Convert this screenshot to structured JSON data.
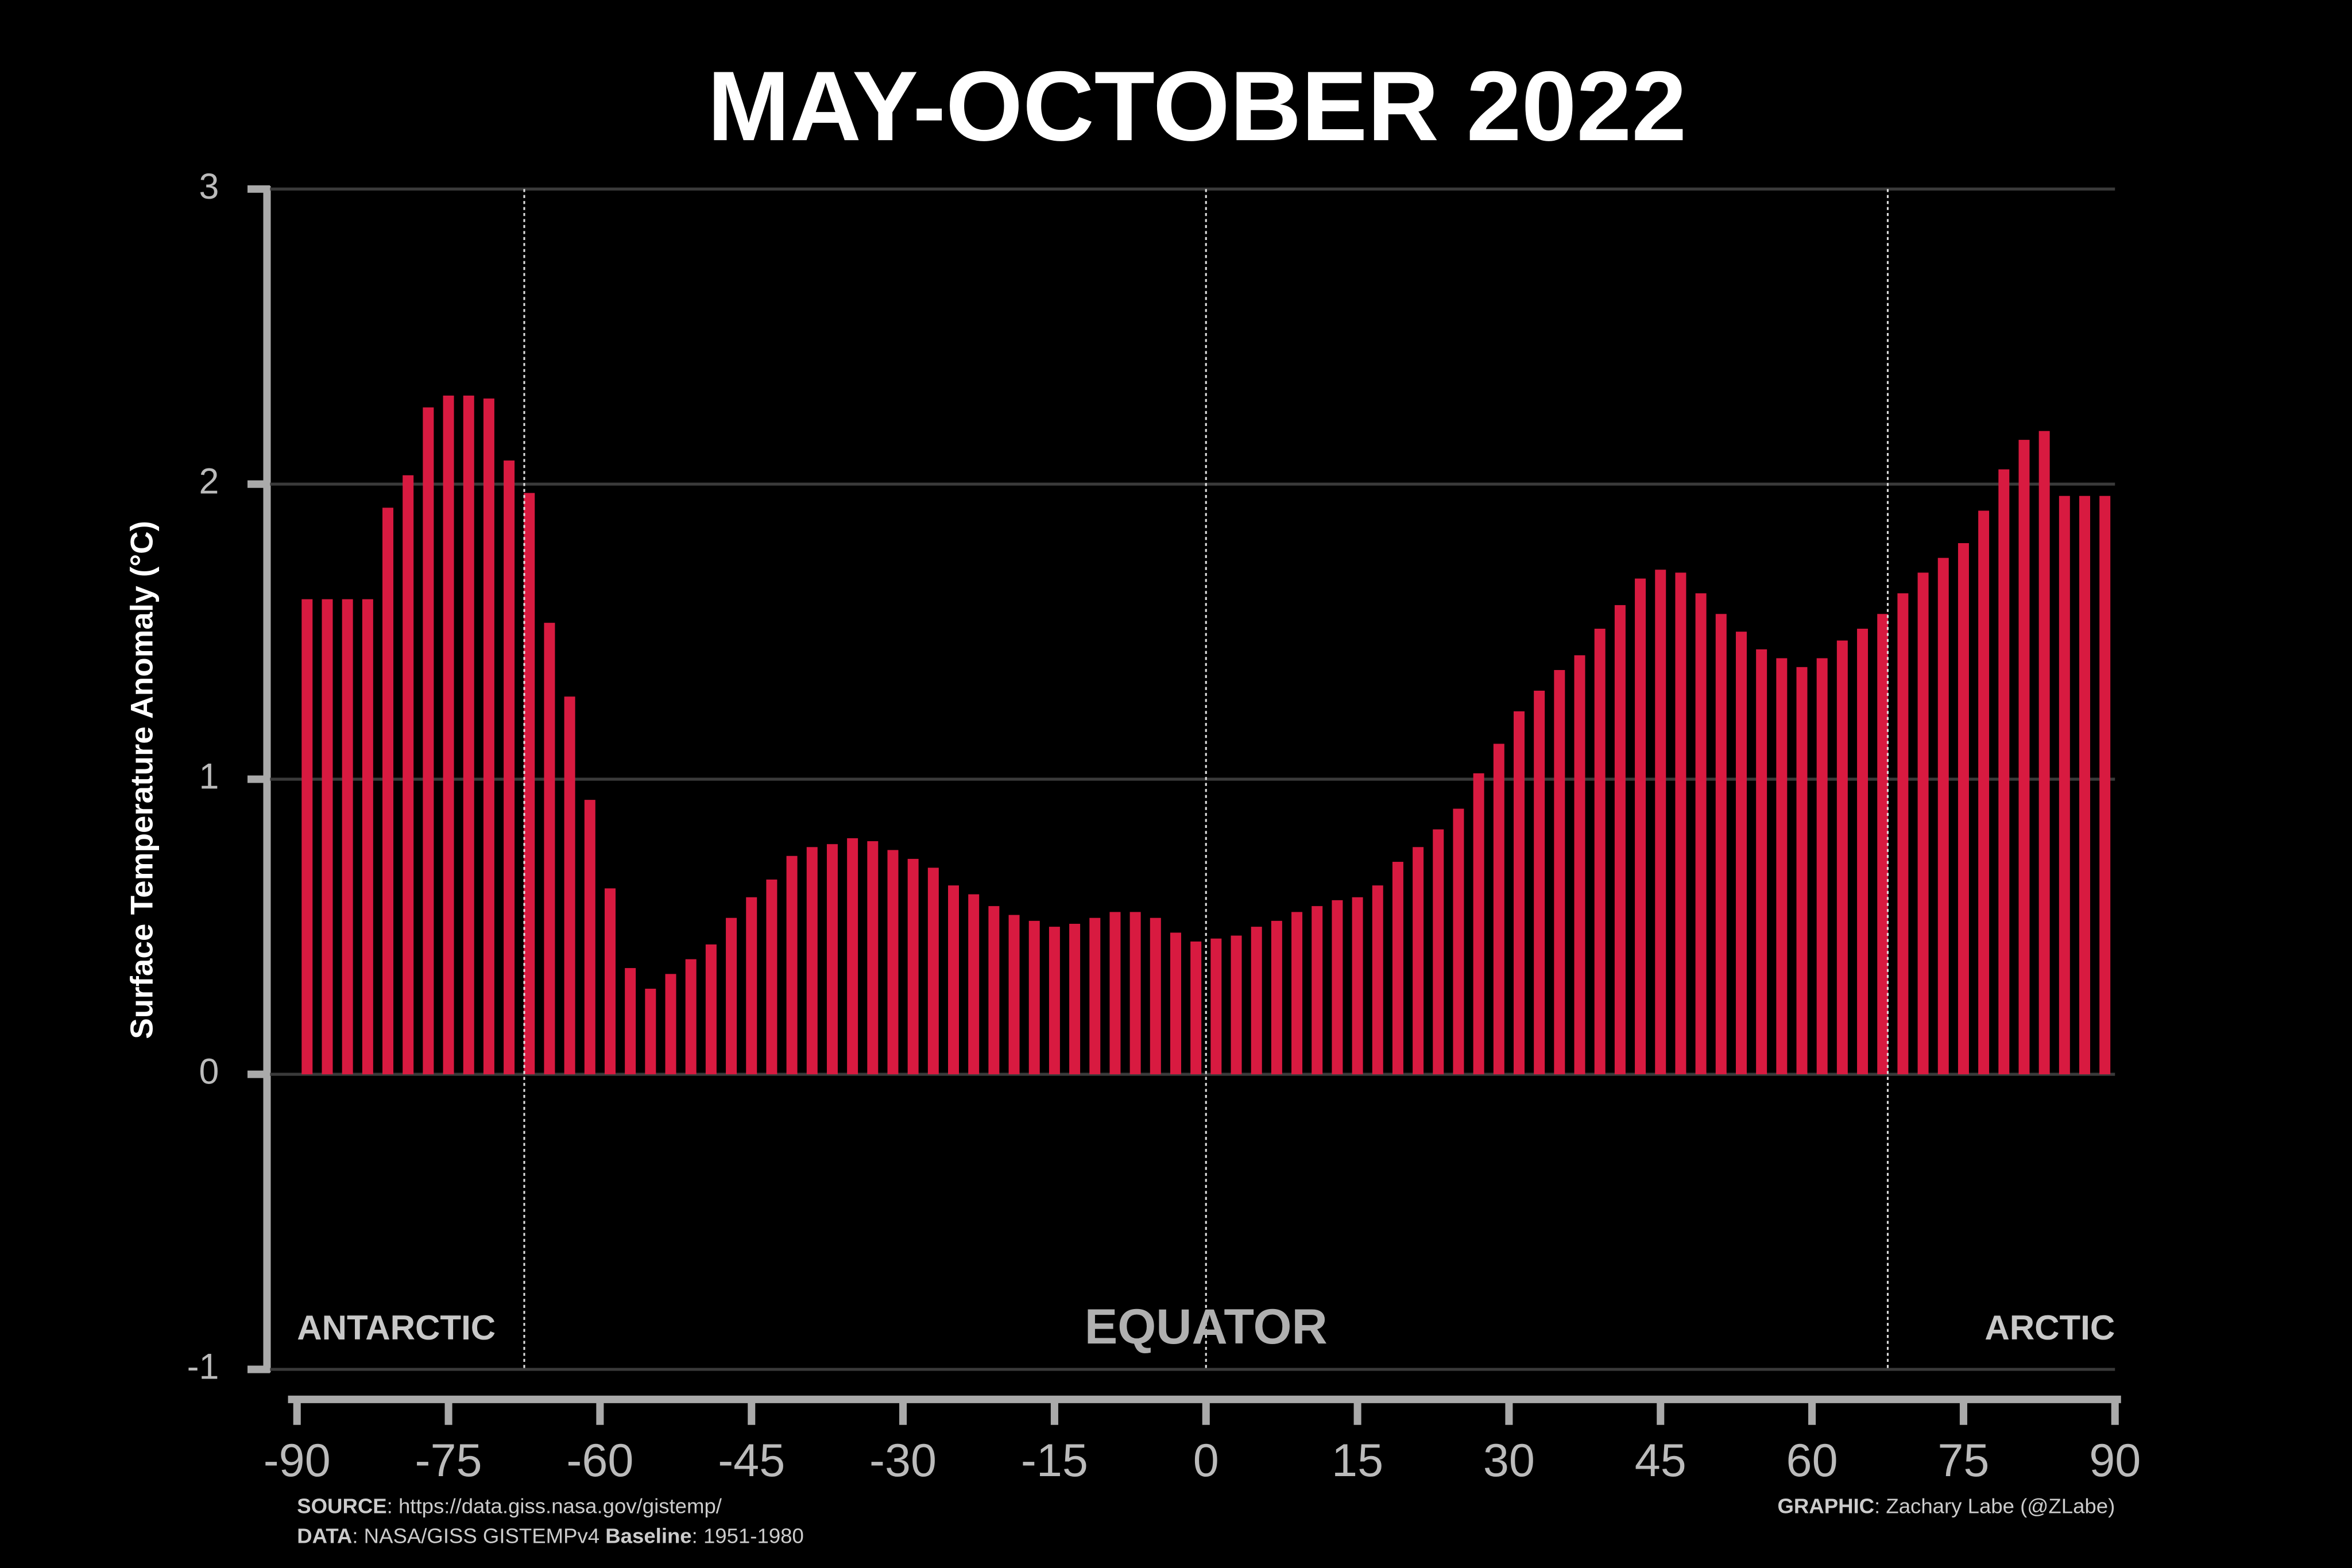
{
  "chart_data": {
    "type": "bar",
    "title": "MAY-OCTOBER 2022",
    "y_label": "Surface Temperature Anomaly (°C)",
    "x": [
      -89,
      -87,
      -85,
      -83,
      -81,
      -79,
      -77,
      -75,
      -73,
      -71,
      -69,
      -67,
      -65,
      -63,
      -61,
      -59,
      -57,
      -55,
      -53,
      -51,
      -49,
      -47,
      -45,
      -43,
      -41,
      -39,
      -37,
      -35,
      -33,
      -31,
      -29,
      -27,
      -25,
      -23,
      -21,
      -19,
      -17,
      -15,
      -13,
      -11,
      -9,
      -7,
      -5,
      -3,
      -1,
      1,
      3,
      5,
      7,
      9,
      11,
      13,
      15,
      17,
      19,
      21,
      23,
      25,
      27,
      29,
      31,
      33,
      35,
      37,
      39,
      41,
      43,
      45,
      47,
      49,
      51,
      53,
      55,
      57,
      59,
      61,
      63,
      65,
      67,
      69,
      71,
      73,
      75,
      77,
      79,
      81,
      83,
      85,
      87,
      89
    ],
    "values": [
      1.61,
      1.61,
      1.61,
      1.61,
      1.92,
      2.03,
      2.26,
      2.3,
      2.3,
      2.29,
      2.08,
      1.97,
      1.53,
      1.28,
      0.93,
      0.63,
      0.36,
      0.29,
      0.34,
      0.39,
      0.44,
      0.53,
      0.6,
      0.66,
      0.74,
      0.77,
      0.78,
      0.8,
      0.79,
      0.76,
      0.73,
      0.7,
      0.64,
      0.61,
      0.57,
      0.54,
      0.52,
      0.5,
      0.51,
      0.53,
      0.55,
      0.55,
      0.53,
      0.48,
      0.45,
      0.46,
      0.47,
      0.5,
      0.52,
      0.55,
      0.57,
      0.59,
      0.6,
      0.64,
      0.72,
      0.77,
      0.83,
      0.9,
      1.02,
      1.12,
      1.23,
      1.3,
      1.37,
      1.42,
      1.51,
      1.59,
      1.68,
      1.71,
      1.7,
      1.63,
      1.56,
      1.5,
      1.44,
      1.41,
      1.38,
      1.41,
      1.47,
      1.51,
      1.56,
      1.63,
      1.7,
      1.75,
      1.8,
      1.91,
      2.05,
      2.15,
      2.18,
      1.96,
      1.96,
      1.96
    ],
    "color": "#d81a40",
    "xlim": [
      -90,
      90
    ],
    "xticks": [
      -90,
      -75,
      -60,
      -45,
      -30,
      -15,
      0,
      15,
      30,
      45,
      60,
      75,
      90
    ],
    "ylim": [
      -1,
      3
    ],
    "yticks": [
      -1,
      0,
      1,
      2,
      3
    ],
    "grid": true,
    "reference_lines": [
      -67.5,
      0,
      67.5
    ],
    "region_labels": [
      "ANTARCTIC",
      "EQUATOR",
      "ARCTIC"
    ],
    "footer": {
      "source_label": "SOURCE",
      "source": ": https://data.giss.nasa.gov/gistemp/",
      "data_label": "DATA",
      "data": ": NASA/GISS GISTEMPv4 ",
      "baseline_label": "Baseline",
      "baseline": ":  1951-1980",
      "graphic_label": "GRAPHIC",
      "graphic": ": Zachary Labe (@ZLabe)"
    }
  }
}
